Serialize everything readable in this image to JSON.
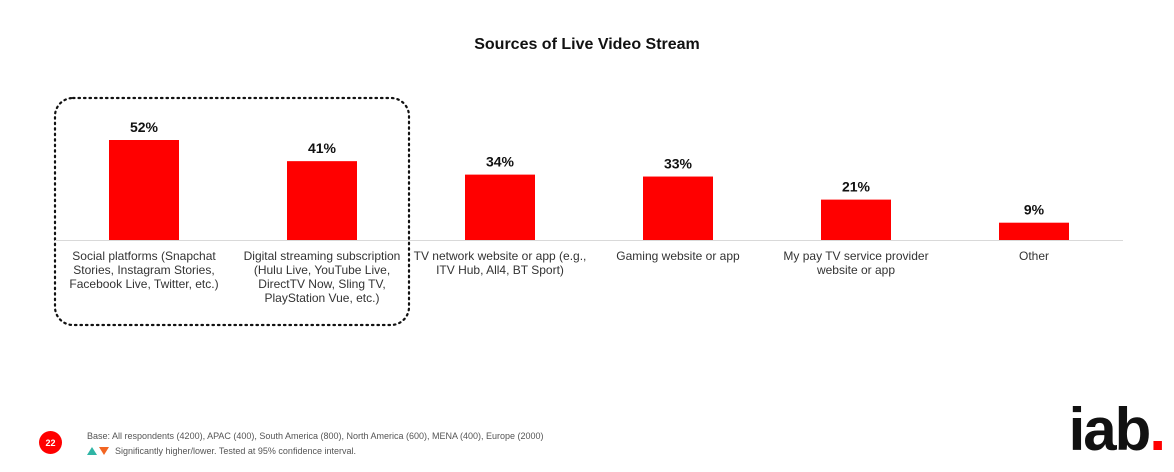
{
  "chart_data": {
    "type": "bar",
    "title": "Sources of Live Video Stream",
    "categories": [
      "Social platforms (Snapchat Stories, Instagram Stories, Facebook Live, Twitter, etc.)",
      "Digital streaming subscription (Hulu Live, YouTube Live, DirectTV Now, Sling TV, PlayStation Vue, etc.)",
      "TV network website or app (e.g., ITV Hub, All4, BT Sport)",
      "Gaming website or app",
      "My pay TV service provider website or app",
      "Other"
    ],
    "category_lines": [
      [
        "Social platforms (Snapchat",
        "Stories, Instagram Stories,",
        "Facebook Live, Twitter, etc.)"
      ],
      [
        "Digital streaming subscription",
        "(Hulu Live, YouTube Live,",
        "DirectTV Now, Sling TV,",
        "PlayStation Vue, etc.)"
      ],
      [
        "TV network website or app (e.g.,",
        "ITV Hub, All4, BT Sport)"
      ],
      [
        "Gaming website or app"
      ],
      [
        "My pay TV service provider",
        "website or app"
      ],
      [
        "Other"
      ]
    ],
    "values": [
      52,
      41,
      34,
      33,
      21,
      9
    ],
    "value_labels": [
      "52%",
      "41%",
      "34%",
      "33%",
      "21%",
      "9%"
    ],
    "ylim": [
      0,
      60
    ],
    "grid": false,
    "bar_color": "#ff0000",
    "highlighted_categories": [
      0,
      1
    ]
  },
  "footer": {
    "page_number": "22",
    "base_note": "Base: All respondents (4200), APAC (400), South America (800), North America (600), MENA (400), Europe (2000)",
    "significance_note": "Significantly higher/lower. Tested at 95% confidence interval.",
    "logo_text": "iab",
    "logo_dot": "."
  },
  "colors": {
    "accent": "#ff0000",
    "higher": "#2fb5a5",
    "lower": "#f26522"
  }
}
